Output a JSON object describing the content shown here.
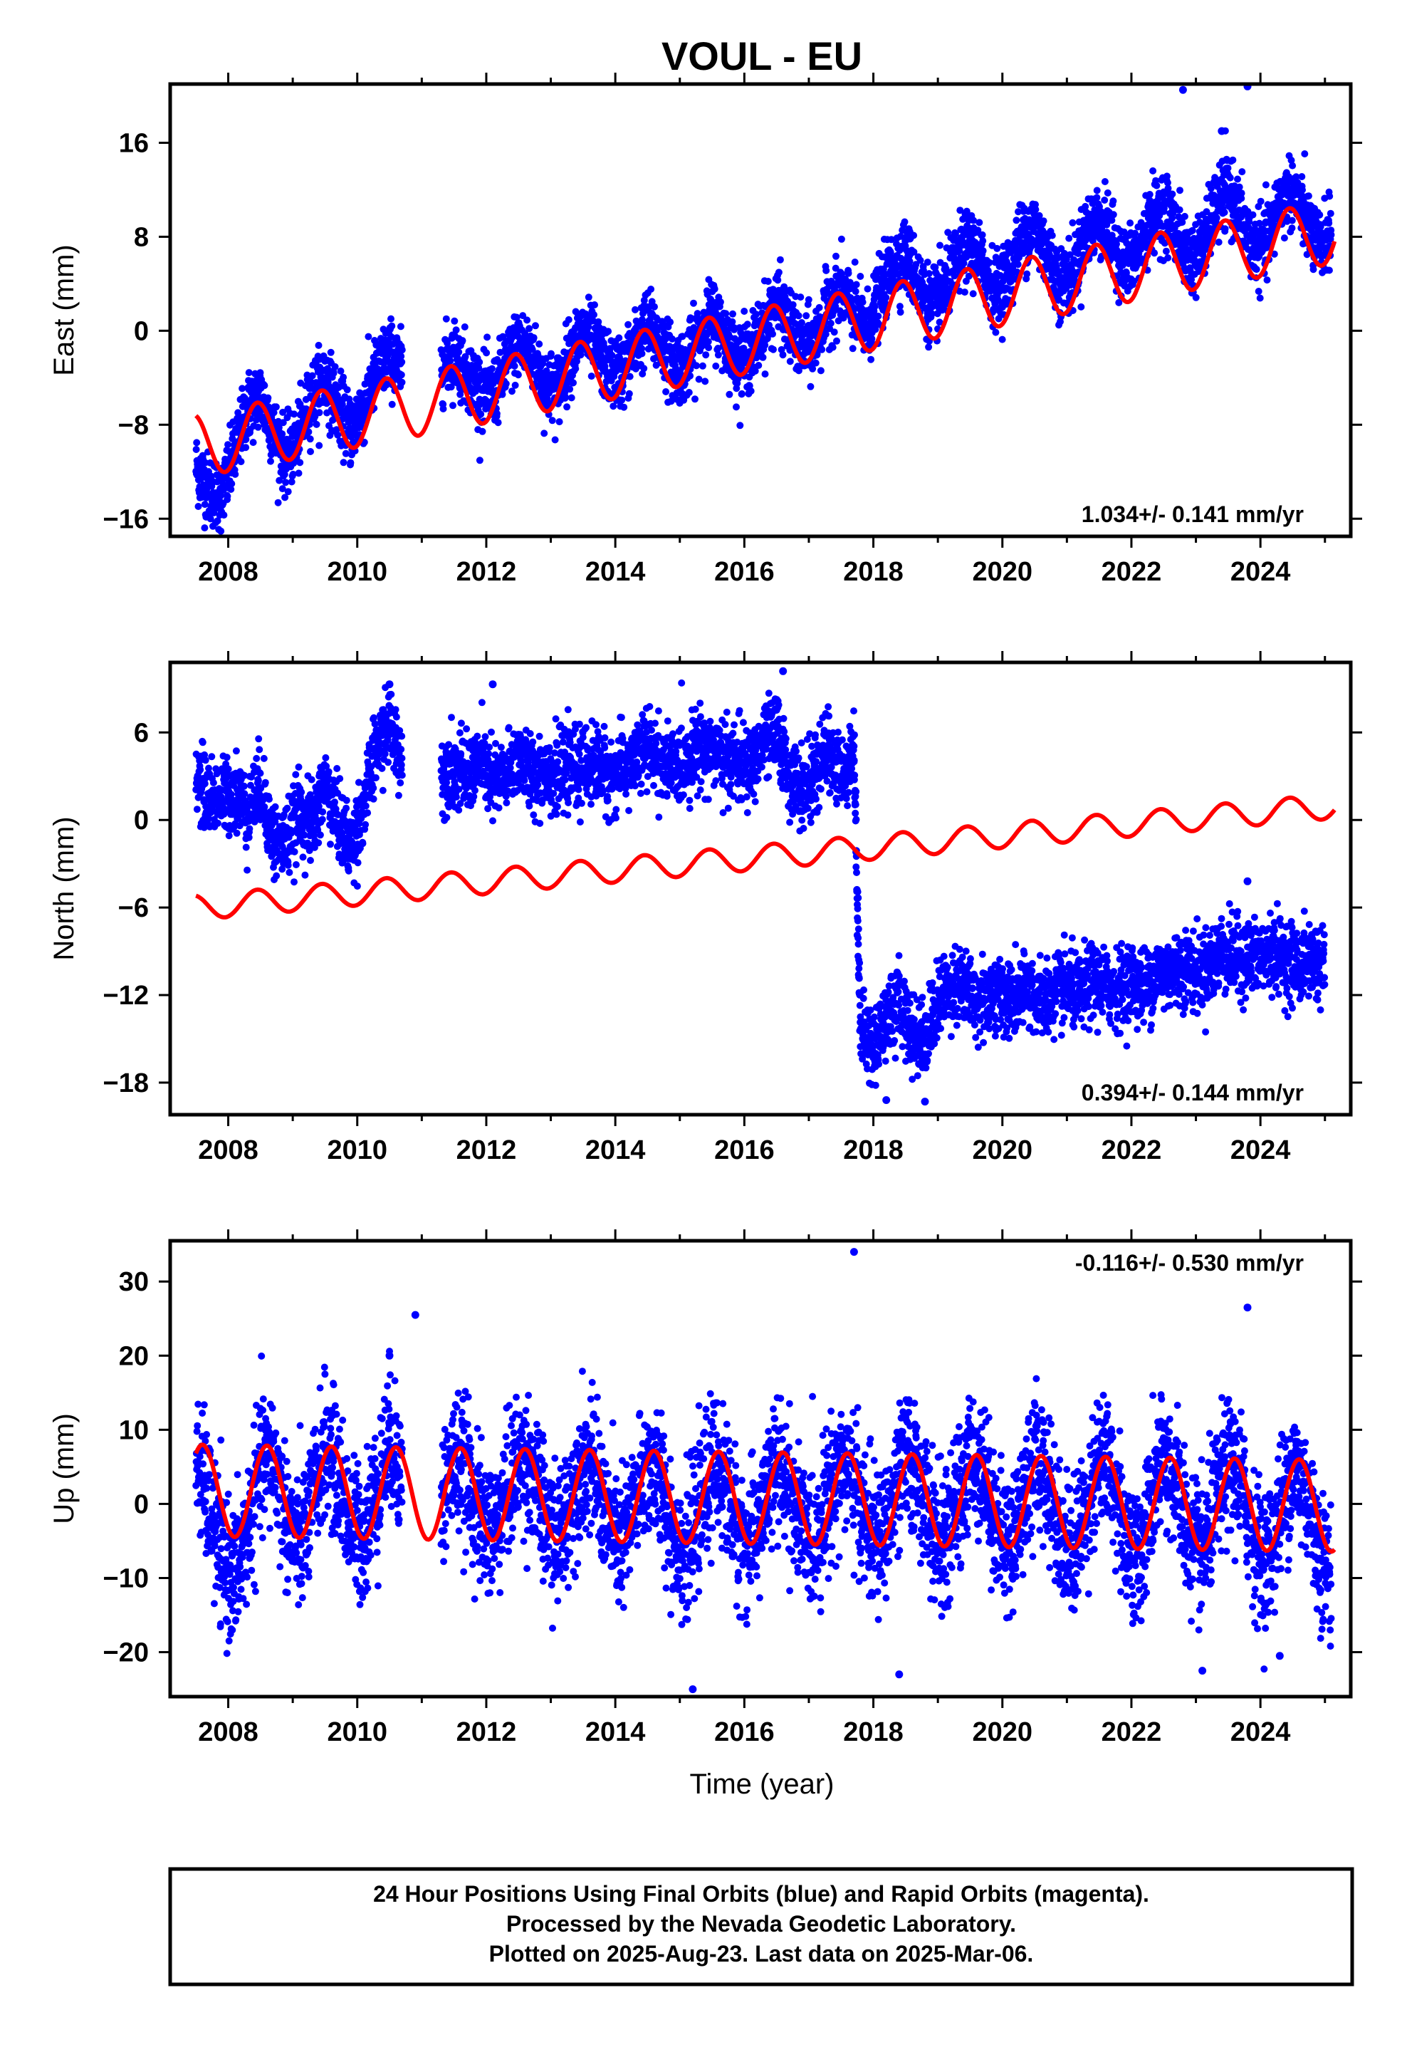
{
  "title": "VOUL - EU",
  "xlabel": "Time (year)",
  "footer": {
    "line1": "24 Hour Positions Using Final Orbits (blue) and Rapid Orbits (magenta).",
    "line2": "Processed by the Nevada Geodetic Laboratory.",
    "line3": "Plotted on 2025-Aug-23. Last data on 2025-Mar-06."
  },
  "colors": {
    "final_orbits": "#0000ff",
    "model": "#ff0000",
    "frame": "#000000"
  },
  "chart_data": [
    {
      "type": "scatter",
      "ylabel": "East (mm)",
      "rate_label": "1.034+/- 0.141 mm/yr",
      "rate_label_position": "bottom-right",
      "xlim": [
        2007.1,
        2025.4
      ],
      "ylim": [
        -17.5,
        21
      ],
      "x_ticks": [
        2008,
        2010,
        2012,
        2014,
        2016,
        2018,
        2020,
        2022,
        2024
      ],
      "y_ticks": [
        -16,
        -8,
        0,
        8,
        16
      ],
      "series": [
        {
          "kind": "points",
          "x": [
            2007.5,
            2007.7,
            2007.9,
            2008.1,
            2008.3,
            2008.5,
            2008.7,
            2008.9,
            2009.1,
            2009.3,
            2009.5,
            2009.7,
            2009.9,
            2010.1,
            2010.3,
            2010.5,
            2010.7,
            2011.3,
            2011.5,
            2011.7,
            2011.9,
            2012.1,
            2012.3,
            2012.5,
            2012.7,
            2012.9,
            2013.1,
            2013.3,
            2013.5,
            2013.7,
            2013.9,
            2014.1,
            2014.3,
            2014.5,
            2014.7,
            2014.9,
            2015.1,
            2015.3,
            2015.5,
            2015.7,
            2015.9,
            2016.1,
            2016.3,
            2016.5,
            2016.7,
            2016.9,
            2017.1,
            2017.3,
            2017.5,
            2017.7,
            2017.9,
            2018.1,
            2018.3,
            2018.5,
            2018.7,
            2018.9,
            2019.1,
            2019.3,
            2019.5,
            2019.7,
            2019.9,
            2020.1,
            2020.3,
            2020.5,
            2020.7,
            2020.9,
            2021.1,
            2021.3,
            2021.5,
            2021.7,
            2021.9,
            2022.1,
            2022.3,
            2022.5,
            2022.7,
            2022.9,
            2023.1,
            2023.3,
            2023.5,
            2023.7,
            2023.9,
            2024.1,
            2024.3,
            2024.5,
            2024.7,
            2024.9,
            2025.1
          ],
          "y": [
            -11.5,
            -13.5,
            -14.0,
            -10.5,
            -6.5,
            -5.5,
            -8.5,
            -11.0,
            -9.0,
            -5.5,
            -4.0,
            -6.5,
            -8.5,
            -6.5,
            -3.5,
            -2.0,
            -3.5,
            -3.0,
            -2.0,
            -3.5,
            -5.0,
            -5.5,
            -3.0,
            -1.0,
            -2.0,
            -4.5,
            -5.0,
            -2.0,
            0.0,
            -1.5,
            -3.5,
            -3.5,
            -1.5,
            0.5,
            -1.0,
            -3.0,
            -3.0,
            -0.5,
            1.5,
            -0.5,
            -2.5,
            -2.0,
            0.5,
            2.5,
            0.5,
            -1.5,
            -1.0,
            2.0,
            3.5,
            1.5,
            0.0,
            3.0,
            5.5,
            6.5,
            4.0,
            2.0,
            3.5,
            6.0,
            7.5,
            5.5,
            3.5,
            5.0,
            8.0,
            9.0,
            6.5,
            4.0,
            5.0,
            8.5,
            9.5,
            7.5,
            5.5,
            6.5,
            9.5,
            10.5,
            8.5,
            6.0,
            7.0,
            10.5,
            12.0,
            9.5,
            7.0,
            7.5,
            11.0,
            12.0,
            9.5,
            7.0,
            8.5
          ],
          "jitter_mm": 1.5
        },
        {
          "kind": "outliers",
          "x": [
            2022.8,
            2023.8,
            2023.4
          ],
          "y": [
            20.5,
            20.8,
            17.0
          ]
        },
        {
          "kind": "model",
          "x0": 2007.5,
          "x1": 2025.15,
          "offset_mm": -9.8,
          "rate_mm_per_yr": 1.034,
          "seasonal_amp_mm": 2.7,
          "seasonal_peak_year_fraction": 0.45,
          "steps": []
        }
      ]
    },
    {
      "type": "scatter",
      "ylabel": "North (mm)",
      "rate_label": "0.394+/- 0.144 mm/yr",
      "rate_label_position": "bottom-right",
      "xlim": [
        2007.1,
        2025.4
      ],
      "ylim": [
        -20.2,
        10.8
      ],
      "x_ticks": [
        2008,
        2010,
        2012,
        2014,
        2016,
        2018,
        2020,
        2022,
        2024
      ],
      "y_ticks": [
        -18,
        -12,
        -6,
        0,
        6
      ],
      "series": [
        {
          "kind": "points",
          "x": [
            2007.5,
            2007.7,
            2007.9,
            2008.1,
            2008.3,
            2008.5,
            2008.7,
            2008.9,
            2009.1,
            2009.3,
            2009.5,
            2009.7,
            2009.9,
            2010.1,
            2010.3,
            2010.5,
            2010.7,
            2011.3,
            2011.5,
            2011.7,
            2011.9,
            2012.1,
            2012.3,
            2012.5,
            2012.7,
            2012.9,
            2013.1,
            2013.3,
            2013.5,
            2013.7,
            2013.9,
            2014.1,
            2014.3,
            2014.5,
            2014.7,
            2014.9,
            2015.1,
            2015.3,
            2015.5,
            2015.7,
            2015.9,
            2016.1,
            2016.3,
            2016.5,
            2016.7,
            2016.9,
            2017.1,
            2017.3,
            2017.5,
            2017.7,
            2017.8,
            2018.0,
            2018.2,
            2018.4,
            2018.6,
            2018.8,
            2019.0,
            2019.2,
            2019.4,
            2019.6,
            2019.8,
            2020.0,
            2020.2,
            2020.4,
            2020.6,
            2020.8,
            2021.0,
            2021.2,
            2021.4,
            2021.6,
            2021.8,
            2022.0,
            2022.2,
            2022.4,
            2022.6,
            2022.8,
            2023.0,
            2023.2,
            2023.4,
            2023.6,
            2023.8,
            2024.0,
            2024.2,
            2024.4,
            2024.6,
            2024.8,
            2025.0
          ],
          "y": [
            3.0,
            1.5,
            1.5,
            2.0,
            0.5,
            2.5,
            -1.5,
            -1.5,
            0.5,
            -0.5,
            2.5,
            0.0,
            -2.0,
            1.0,
            5.0,
            6.5,
            4.0,
            3.5,
            3.5,
            3.0,
            4.0,
            2.5,
            3.0,
            4.5,
            3.0,
            3.5,
            3.0,
            3.5,
            3.5,
            4.0,
            3.0,
            3.5,
            4.0,
            5.0,
            4.0,
            3.5,
            4.0,
            5.0,
            5.0,
            4.0,
            4.0,
            3.5,
            5.5,
            6.0,
            3.0,
            2.0,
            3.0,
            5.0,
            3.0,
            5.0,
            -14.5,
            -15.5,
            -13.5,
            -12.5,
            -14.5,
            -15.0,
            -12.5,
            -11.0,
            -11.5,
            -12.5,
            -12.0,
            -12.0,
            -12.5,
            -11.5,
            -12.5,
            -12.0,
            -11.5,
            -12.0,
            -11.0,
            -11.5,
            -11.5,
            -11.0,
            -11.5,
            -10.5,
            -10.5,
            -10.0,
            -10.5,
            -10.0,
            -9.0,
            -9.5,
            -9.5,
            -9.5,
            -9.0,
            -9.5,
            -10.0,
            -9.5,
            -10.0
          ],
          "jitter_mm": 1.3
        },
        {
          "kind": "outliers",
          "x": [
            2012.1,
            2010.5,
            2016.6,
            2023.8,
            2018.2,
            2018.8
          ],
          "y": [
            9.3,
            9.3,
            10.2,
            -4.2,
            -19.2,
            -19.3
          ]
        },
        {
          "kind": "model",
          "x0": 2007.5,
          "x1": 2025.15,
          "offset_mm": -6.0,
          "rate_mm_per_yr": 0.394,
          "seasonal_amp_mm": 0.85,
          "seasonal_peak_year_fraction": 0.45,
          "steps": []
        }
      ]
    },
    {
      "type": "scatter",
      "ylabel": "Up (mm)",
      "rate_label": "-0.116+/- 0.530 mm/yr",
      "rate_label_position": "top-right",
      "xlim": [
        2007.1,
        2025.4
      ],
      "ylim": [
        -26,
        35.5
      ],
      "x_ticks": [
        2008,
        2010,
        2012,
        2014,
        2016,
        2018,
        2020,
        2022,
        2024
      ],
      "y_ticks": [
        -20,
        -10,
        0,
        10,
        20,
        30
      ],
      "series": [
        {
          "kind": "points",
          "x": [
            2007.5,
            2007.7,
            2007.9,
            2008.1,
            2008.3,
            2008.5,
            2008.7,
            2008.9,
            2009.1,
            2009.3,
            2009.5,
            2009.7,
            2009.9,
            2010.1,
            2010.3,
            2010.5,
            2010.7,
            2011.3,
            2011.5,
            2011.7,
            2011.9,
            2012.1,
            2012.3,
            2012.5,
            2012.7,
            2012.9,
            2013.1,
            2013.3,
            2013.5,
            2013.7,
            2013.9,
            2014.1,
            2014.3,
            2014.5,
            2014.7,
            2014.9,
            2015.1,
            2015.3,
            2015.5,
            2015.7,
            2015.9,
            2016.1,
            2016.3,
            2016.5,
            2016.7,
            2016.9,
            2017.1,
            2017.3,
            2017.5,
            2017.7,
            2017.9,
            2018.1,
            2018.3,
            2018.5,
            2018.7,
            2018.9,
            2019.1,
            2019.3,
            2019.5,
            2019.7,
            2019.9,
            2020.1,
            2020.3,
            2020.5,
            2020.7,
            2020.9,
            2021.1,
            2021.3,
            2021.5,
            2021.7,
            2021.9,
            2022.1,
            2022.3,
            2022.5,
            2022.7,
            2022.9,
            2023.1,
            2023.3,
            2023.5,
            2023.7,
            2023.9,
            2024.1,
            2024.3,
            2024.5,
            2024.7,
            2024.9,
            2025.1
          ],
          "y": [
            6.0,
            0.0,
            -8.0,
            -10.0,
            -4.0,
            5.0,
            6.0,
            -2.0,
            -6.0,
            0.0,
            8.0,
            4.0,
            -3.0,
            -4.0,
            2.0,
            9.0,
            4.0,
            0.0,
            6.0,
            4.0,
            -2.0,
            -4.0,
            1.0,
            6.0,
            5.0,
            -2.0,
            -5.0,
            0.0,
            6.0,
            4.0,
            -3.0,
            -6.0,
            0.0,
            5.0,
            3.0,
            -4.0,
            -7.0,
            -1.0,
            5.0,
            3.0,
            -4.0,
            -6.0,
            0.0,
            5.0,
            2.0,
            -4.0,
            -5.0,
            1.0,
            6.0,
            3.0,
            -3.0,
            -5.0,
            0.0,
            6.0,
            4.0,
            -3.0,
            -6.0,
            0.0,
            6.0,
            5.0,
            -3.0,
            -6.0,
            0.0,
            6.0,
            4.0,
            -4.0,
            -7.0,
            0.0,
            6.0,
            4.0,
            -4.0,
            -8.0,
            0.0,
            6.0,
            3.0,
            -5.0,
            -7.0,
            0.0,
            5.0,
            3.0,
            -5.0,
            -8.0,
            -1.0,
            5.0,
            2.0,
            -6.0,
            -10.0
          ],
          "jitter_mm": 4.5
        },
        {
          "kind": "outliers",
          "x": [
            2017.7,
            2015.2,
            2018.4,
            2023.1,
            2010.9,
            2024.3,
            2023.8,
            2010.5
          ],
          "y": [
            34.0,
            -25.0,
            -23.0,
            -22.5,
            25.5,
            -20.5,
            26.5,
            20.0
          ]
        },
        {
          "kind": "model",
          "x0": 2007.5,
          "x1": 2025.15,
          "offset_mm": 1.8,
          "rate_mm_per_yr": -0.116,
          "seasonal_amp_mm": 6.2,
          "seasonal_peak_year_fraction": 0.6,
          "steps": []
        }
      ]
    }
  ]
}
